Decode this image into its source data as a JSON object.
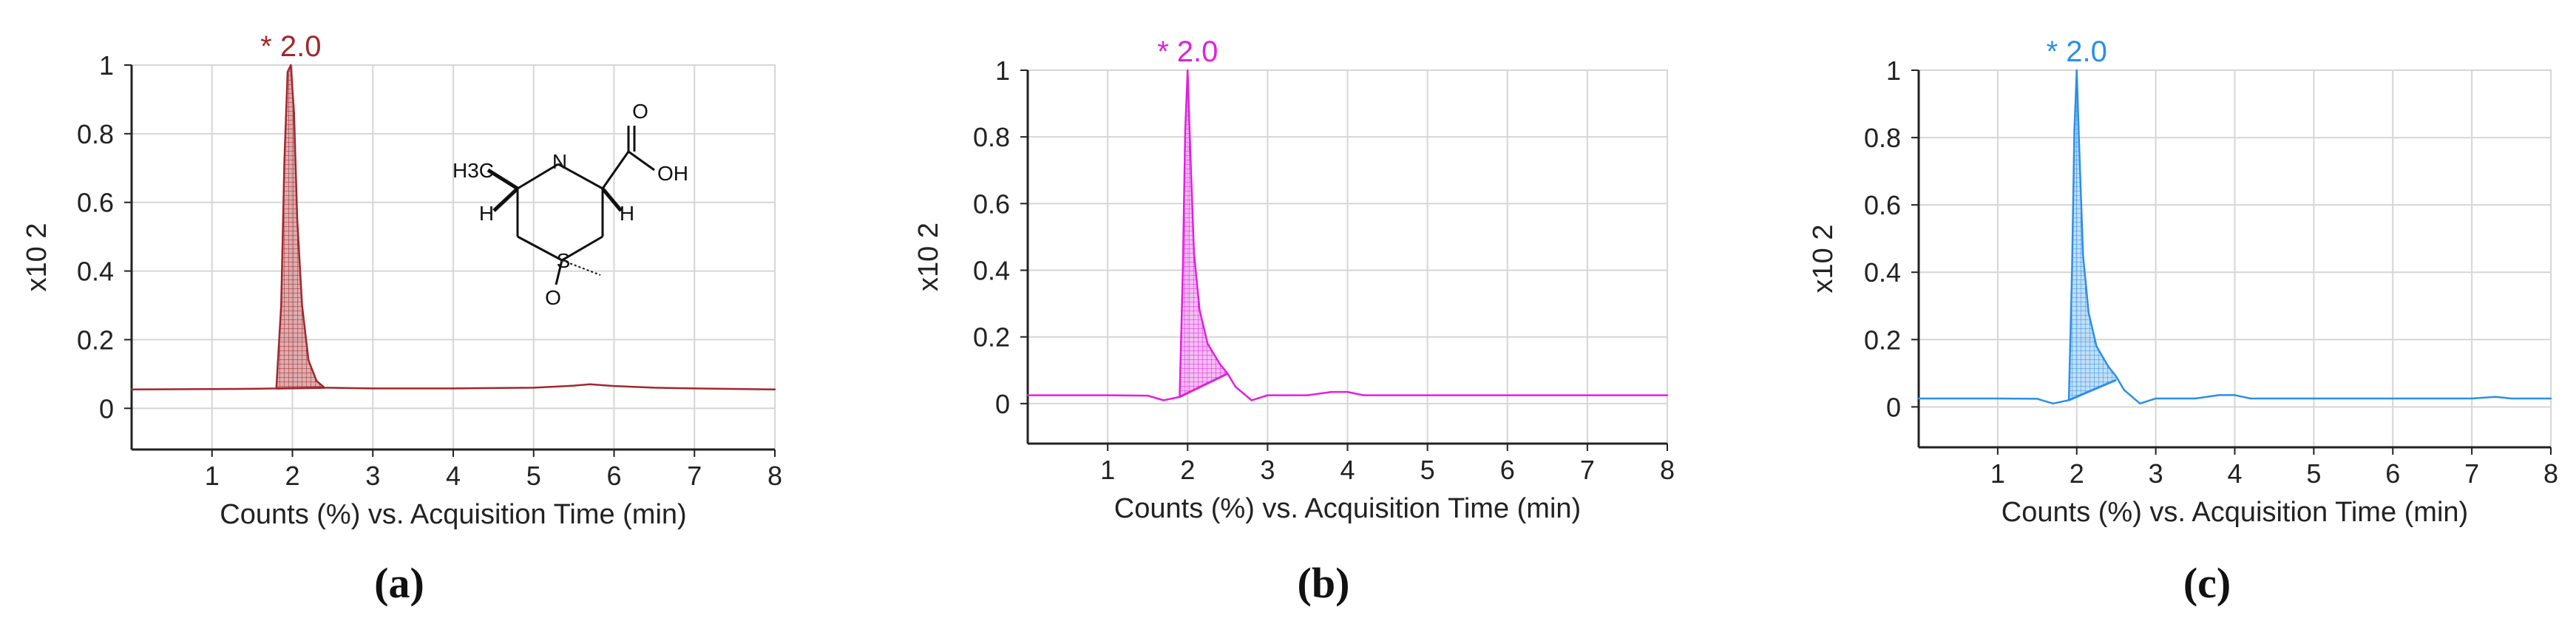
{
  "chart_data": [
    {
      "type": "line",
      "panel_label": "(a)",
      "color": "#a0282c",
      "fill_color": "#c26a6d",
      "xlabel": "Counts (%) vs. Acquisition Time (min)",
      "ylabel": "x10 2",
      "xlim": [
        0,
        8
      ],
      "ylim": [
        -0.12,
        1.0
      ],
      "x_ticks": [
        "1",
        "2",
        "3",
        "4",
        "5",
        "6",
        "7",
        "8"
      ],
      "y_ticks": [
        "0",
        "0.2",
        "0.4",
        "0.6",
        "0.8",
        "1"
      ],
      "grid": true,
      "peak_annotation": "* 2.0",
      "peak_time": 1.98,
      "structure_labels": [
        "H3C",
        "H",
        "N",
        "H",
        "O",
        "OH",
        "S",
        "O"
      ],
      "series": [
        {
          "x": [
            0.0,
            1.0,
            1.5,
            1.8,
            1.86,
            1.9,
            1.94,
            1.98,
            2.02,
            2.06,
            2.12,
            2.2,
            2.3,
            2.4,
            3.0,
            4.0,
            5.0,
            5.5,
            5.7,
            6.0,
            6.5,
            7.0,
            8.0
          ],
          "y": [
            0.055,
            0.056,
            0.057,
            0.058,
            0.3,
            0.72,
            0.98,
            1.0,
            0.86,
            0.55,
            0.3,
            0.14,
            0.08,
            0.06,
            0.058,
            0.058,
            0.06,
            0.066,
            0.07,
            0.065,
            0.06,
            0.058,
            0.055
          ]
        }
      ],
      "baseline": {
        "x": [
          1.8,
          2.4
        ],
        "y": [
          0.058,
          0.06
        ]
      }
    },
    {
      "type": "line",
      "panel_label": "(b)",
      "color": "#e020e0",
      "fill_color": "#ee88ee",
      "xlabel": "Counts (%) vs. Acquisition Time (min)",
      "ylabel": "x10 2",
      "xlim": [
        0,
        8
      ],
      "ylim": [
        -0.12,
        1.0
      ],
      "x_ticks": [
        "1",
        "2",
        "3",
        "4",
        "5",
        "6",
        "7",
        "8"
      ],
      "y_ticks": [
        "0",
        "0.2",
        "0.4",
        "0.6",
        "0.8",
        "1"
      ],
      "grid": true,
      "peak_annotation": "* 2.0",
      "peak_time": 2.0,
      "series": [
        {
          "x": [
            0.0,
            1.0,
            1.5,
            1.7,
            1.9,
            1.94,
            1.97,
            2.0,
            2.03,
            2.08,
            2.15,
            2.25,
            2.4,
            2.5,
            2.6,
            2.7,
            2.8,
            3.0,
            3.5,
            3.8,
            4.0,
            4.2,
            5.0,
            6.0,
            7.0,
            8.0
          ],
          "y": [
            0.025,
            0.025,
            0.024,
            0.01,
            0.02,
            0.4,
            0.82,
            1.0,
            0.78,
            0.45,
            0.28,
            0.18,
            0.12,
            0.09,
            0.05,
            0.03,
            0.01,
            0.025,
            0.025,
            0.035,
            0.035,
            0.025,
            0.025,
            0.025,
            0.025,
            0.025
          ]
        }
      ],
      "baseline": {
        "x": [
          1.9,
          2.5
        ],
        "y": [
          0.02,
          0.09
        ]
      }
    },
    {
      "type": "line",
      "panel_label": "(c)",
      "color": "#2b8fe8",
      "fill_color": "#8ec4f4",
      "xlabel": "Counts (%) vs. Acquisition Time (min)",
      "ylabel": "x10 2",
      "xlim": [
        0,
        8
      ],
      "ylim": [
        -0.12,
        1.0
      ],
      "x_ticks": [
        "1",
        "2",
        "3",
        "4",
        "5",
        "6",
        "7",
        "8"
      ],
      "y_ticks": [
        "0",
        "0.2",
        "0.4",
        "0.6",
        "0.8",
        "1"
      ],
      "grid": true,
      "peak_annotation": "* 2.0",
      "peak_time": 2.0,
      "series": [
        {
          "x": [
            0.0,
            1.0,
            1.5,
            1.7,
            1.9,
            1.94,
            1.97,
            2.0,
            2.03,
            2.08,
            2.15,
            2.25,
            2.4,
            2.5,
            2.6,
            2.7,
            2.8,
            3.0,
            3.5,
            3.8,
            4.0,
            4.2,
            5.0,
            6.0,
            7.0,
            7.3,
            7.5,
            8.0
          ],
          "y": [
            0.025,
            0.025,
            0.024,
            0.01,
            0.02,
            0.4,
            0.82,
            1.0,
            0.78,
            0.45,
            0.28,
            0.18,
            0.12,
            0.09,
            0.05,
            0.03,
            0.01,
            0.025,
            0.025,
            0.035,
            0.035,
            0.025,
            0.025,
            0.025,
            0.025,
            0.03,
            0.025,
            0.025
          ]
        }
      ],
      "baseline": {
        "x": [
          1.9,
          2.5
        ],
        "y": [
          0.02,
          0.08
        ]
      }
    }
  ]
}
